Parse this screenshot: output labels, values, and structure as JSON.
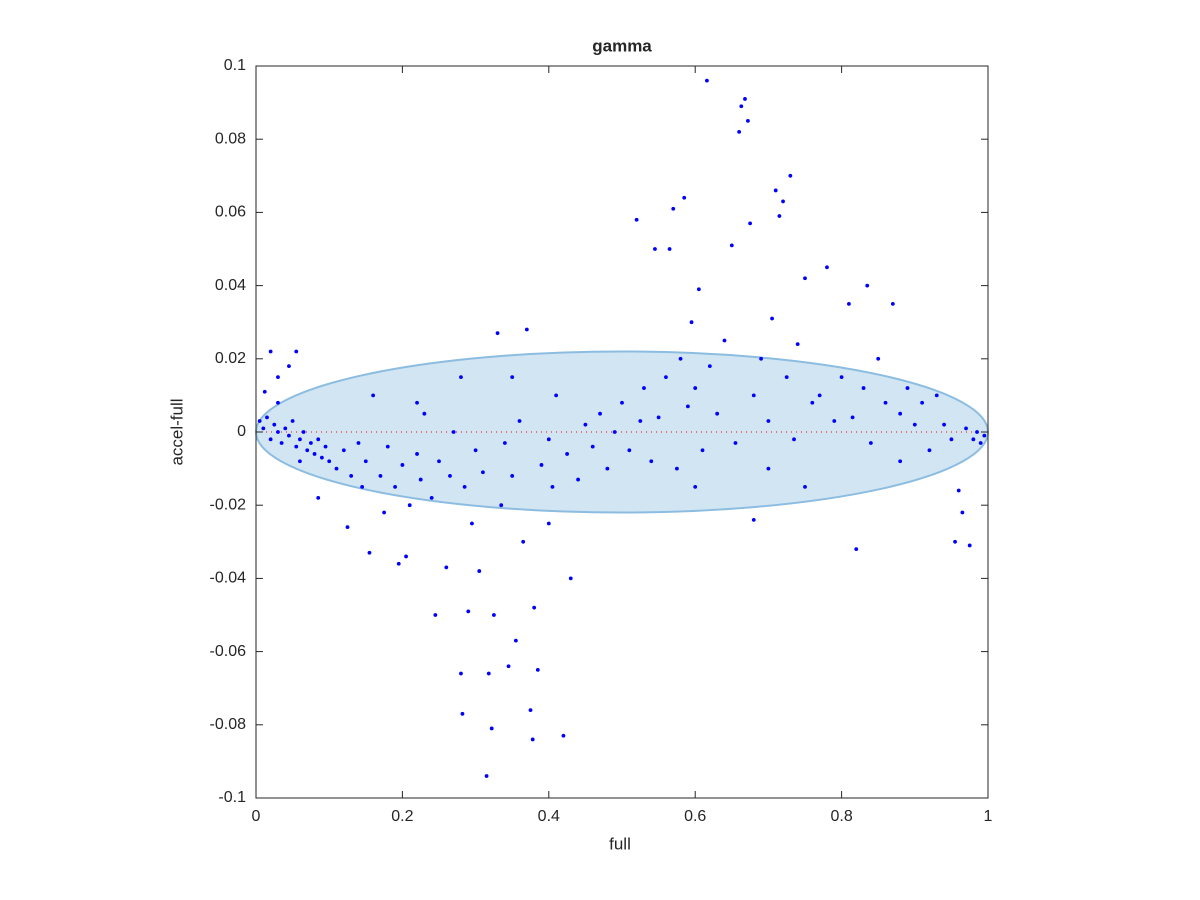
{
  "chart_data": {
    "type": "scatter",
    "title": "gamma",
    "x_label": "full",
    "y_label": "accel-full",
    "color": "#0000ff",
    "x": [
      0.005,
      0.01,
      0.015,
      0.02,
      0.025,
      0.03,
      0.035,
      0.04,
      0.045,
      0.05,
      0.055,
      0.06,
      0.065,
      0.07,
      0.075,
      0.08,
      0.085,
      0.09,
      0.095,
      0.1,
      0.02,
      0.03,
      0.055,
      0.012,
      0.045,
      0.06,
      0.085,
      0.03,
      0.11,
      0.12,
      0.125,
      0.13,
      0.14,
      0.145,
      0.15,
      0.155,
      0.16,
      0.17,
      0.175,
      0.18,
      0.19,
      0.195,
      0.2,
      0.205,
      0.21,
      0.22,
      0.225,
      0.23,
      0.24,
      0.245,
      0.25,
      0.26,
      0.265,
      0.27,
      0.28,
      0.282,
      0.285,
      0.29,
      0.295,
      0.3,
      0.305,
      0.31,
      0.315,
      0.318,
      0.322,
      0.325,
      0.33,
      0.335,
      0.34,
      0.345,
      0.35,
      0.355,
      0.36,
      0.365,
      0.37,
      0.375,
      0.378,
      0.38,
      0.385,
      0.39,
      0.4,
      0.405,
      0.41,
      0.42,
      0.425,
      0.43,
      0.44,
      0.45,
      0.35,
      0.28,
      0.22,
      0.4,
      0.46,
      0.47,
      0.48,
      0.49,
      0.5,
      0.51,
      0.52,
      0.525,
      0.53,
      0.54,
      0.545,
      0.55,
      0.56,
      0.565,
      0.57,
      0.575,
      0.58,
      0.585,
      0.59,
      0.595,
      0.6,
      0.605,
      0.61,
      0.616,
      0.62,
      0.63,
      0.64,
      0.65,
      0.655,
      0.66,
      0.663,
      0.668,
      0.672,
      0.675,
      0.68,
      0.69,
      0.7,
      0.705,
      0.71,
      0.715,
      0.72,
      0.725,
      0.73,
      0.735,
      0.74,
      0.75,
      0.76,
      0.77,
      0.78,
      0.79,
      0.8,
      0.81,
      0.815,
      0.82,
      0.83,
      0.835,
      0.84,
      0.85,
      0.86,
      0.87,
      0.88,
      0.89,
      0.9,
      0.91,
      0.92,
      0.93,
      0.94,
      0.95,
      0.955,
      0.96,
      0.965,
      0.97,
      0.975,
      0.98,
      0.985,
      0.99,
      0.995,
      0.7,
      0.75,
      0.68,
      0.6,
      0.88
    ],
    "values": [
      0.003,
      0.001,
      0.004,
      -0.002,
      0.002,
      0.0,
      -0.003,
      0.001,
      -0.001,
      0.003,
      -0.004,
      -0.002,
      0.0,
      -0.005,
      -0.003,
      -0.006,
      -0.002,
      -0.007,
      -0.004,
      -0.008,
      0.022,
      0.015,
      0.022,
      0.011,
      0.018,
      -0.008,
      -0.018,
      0.008,
      -0.01,
      -0.005,
      -0.026,
      -0.012,
      -0.003,
      -0.015,
      -0.008,
      -0.033,
      0.01,
      -0.012,
      -0.022,
      -0.004,
      -0.015,
      -0.036,
      -0.009,
      -0.034,
      -0.02,
      -0.006,
      -0.013,
      0.005,
      -0.018,
      -0.05,
      -0.008,
      -0.037,
      -0.012,
      0.0,
      -0.066,
      -0.077,
      -0.015,
      -0.049,
      -0.025,
      -0.005,
      -0.038,
      -0.011,
      -0.094,
      -0.066,
      -0.081,
      -0.05,
      0.027,
      -0.02,
      -0.003,
      -0.064,
      -0.012,
      -0.057,
      0.003,
      -0.03,
      0.028,
      -0.076,
      -0.084,
      -0.048,
      -0.065,
      -0.009,
      -0.002,
      -0.015,
      0.01,
      -0.083,
      -0.006,
      -0.04,
      -0.013,
      0.002,
      0.015,
      0.015,
      0.008,
      -0.025,
      -0.004,
      0.005,
      -0.01,
      0.0,
      0.008,
      -0.005,
      0.058,
      0.003,
      0.012,
      -0.008,
      0.05,
      0.004,
      0.015,
      0.05,
      0.061,
      -0.01,
      0.02,
      0.064,
      0.007,
      0.03,
      0.012,
      0.039,
      -0.005,
      0.096,
      0.018,
      0.005,
      0.025,
      0.051,
      -0.003,
      0.082,
      0.089,
      0.091,
      0.085,
      0.057,
      0.01,
      0.02,
      0.003,
      0.031,
      0.066,
      0.059,
      0.063,
      0.015,
      0.07,
      -0.002,
      0.024,
      0.042,
      0.008,
      0.01,
      0.045,
      0.003,
      0.015,
      0.035,
      0.004,
      -0.032,
      0.012,
      0.04,
      -0.003,
      0.02,
      0.008,
      0.035,
      0.005,
      0.012,
      0.002,
      0.008,
      -0.005,
      0.01,
      0.002,
      -0.002,
      -0.03,
      -0.016,
      -0.022,
      0.001,
      -0.031,
      -0.002,
      0.0,
      -0.003,
      -0.001,
      -0.01,
      -0.015,
      -0.024,
      -0.015,
      -0.008
    ],
    "ellipse": {
      "cx": 0.5,
      "cy": 0,
      "rx": 0.5,
      "ry": 0.022,
      "fill": "#d2e5f3",
      "stroke": "#8cbde0"
    },
    "reference_line": {
      "y": 0,
      "color": "#ff0000"
    },
    "xlim": [
      0,
      1
    ],
    "xticks": [
      0,
      0.2,
      0.4,
      0.6,
      0.8,
      1
    ],
    "ylim": [
      -0.1,
      0.1
    ],
    "yticks": [
      -0.1,
      -0.08,
      -0.06,
      -0.04,
      -0.02,
      0,
      0.02,
      0.04,
      0.06,
      0.08,
      0.1
    ],
    "grid": false
  }
}
